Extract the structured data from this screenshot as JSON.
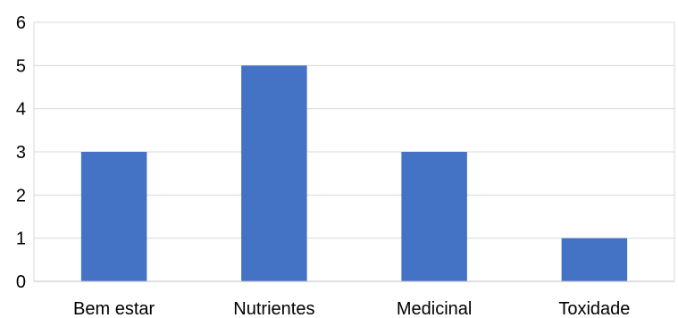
{
  "chart_data": {
    "type": "bar",
    "categories": [
      "Bem estar",
      "Nutrientes",
      "Medicinal",
      "Toxidade"
    ],
    "values": [
      3,
      5,
      3,
      1
    ],
    "title": "",
    "xlabel": "",
    "ylabel": "",
    "ylim": [
      0,
      6
    ],
    "yticks": [
      0,
      1,
      2,
      3,
      4,
      5,
      6
    ],
    "grid": true,
    "legend": "none",
    "bar_color": "#4472C4"
  }
}
